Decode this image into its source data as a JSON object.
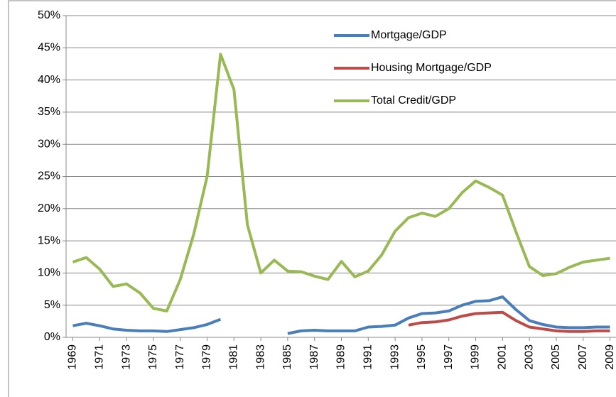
{
  "chart_data": {
    "type": "line",
    "x": [
      1969,
      1970,
      1971,
      1972,
      1973,
      1974,
      1975,
      1976,
      1977,
      1978,
      1979,
      1980,
      1981,
      1982,
      1983,
      1984,
      1985,
      1986,
      1987,
      1988,
      1989,
      1990,
      1991,
      1992,
      1993,
      1994,
      1995,
      1996,
      1997,
      1998,
      1999,
      2000,
      2001,
      2002,
      2003,
      2004,
      2005,
      2006,
      2007,
      2008,
      2009
    ],
    "series": [
      {
        "name": "Mortgage/GDP",
        "color": "#4a7ebb",
        "values": [
          1.8,
          2.2,
          1.8,
          1.3,
          1.1,
          1.0,
          1.0,
          0.9,
          1.2,
          1.5,
          2.0,
          2.8,
          null,
          null,
          null,
          null,
          0.6,
          1.0,
          1.1,
          1.0,
          1.0,
          1.0,
          1.6,
          1.7,
          1.9,
          3.0,
          3.7,
          3.8,
          4.1,
          5.0,
          5.6,
          5.7,
          6.3,
          4.3,
          2.6,
          2.0,
          1.6,
          1.5,
          1.5,
          1.6,
          1.6
        ]
      },
      {
        "name": "Housing Mortgage/GDP",
        "color": "#be4b48",
        "values": [
          null,
          null,
          null,
          null,
          null,
          null,
          null,
          null,
          null,
          null,
          null,
          null,
          null,
          null,
          null,
          null,
          null,
          null,
          null,
          null,
          null,
          null,
          null,
          null,
          null,
          1.9,
          2.3,
          2.4,
          2.7,
          3.3,
          3.7,
          3.8,
          3.9,
          2.6,
          1.6,
          1.3,
          1.0,
          0.9,
          0.9,
          1.0,
          1.0
        ]
      },
      {
        "name": "Total Credit/GDP",
        "color": "#98b954",
        "values": [
          11.7,
          12.4,
          10.6,
          7.9,
          8.3,
          6.9,
          4.5,
          4.1,
          9.0,
          16.0,
          25.0,
          44.0,
          38.5,
          17.5,
          10.0,
          12.0,
          10.3,
          10.2,
          9.5,
          9.0,
          11.8,
          9.4,
          10.3,
          12.8,
          16.5,
          18.6,
          19.3,
          18.8,
          20.0,
          22.5,
          24.3,
          23.3,
          22.1,
          16.4,
          11.0,
          9.6,
          9.9,
          10.9,
          11.7,
          12.0,
          12.3
        ]
      }
    ],
    "xlim": [
      1968.5,
      2009.5
    ],
    "xticks": [
      1969,
      1971,
      1973,
      1975,
      1977,
      1979,
      1981,
      1983,
      1985,
      1987,
      1989,
      1991,
      1993,
      1995,
      1997,
      1999,
      2001,
      2003,
      2005,
      2007,
      2009
    ],
    "ylim": [
      0,
      50
    ],
    "yticks": [
      {
        "value": 0,
        "label": "0%"
      },
      {
        "value": 5,
        "label": "5%"
      },
      {
        "value": 10,
        "label": "10%"
      },
      {
        "value": 15,
        "label": "15%"
      },
      {
        "value": 20,
        "label": "20%"
      },
      {
        "value": 25,
        "label": "25%"
      },
      {
        "value": 30,
        "label": "30%"
      },
      {
        "value": 35,
        "label": "35%"
      },
      {
        "value": 40,
        "label": "40%"
      },
      {
        "value": 45,
        "label": "45%"
      },
      {
        "value": 50,
        "label": "50%"
      }
    ],
    "grid": true,
    "legend": "upper-right"
  }
}
